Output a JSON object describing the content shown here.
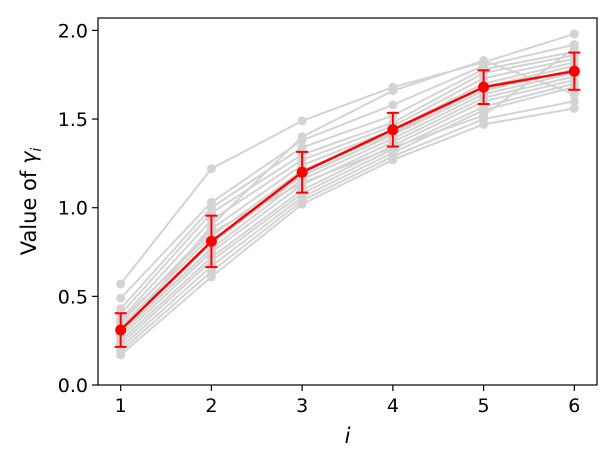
{
  "chart_data": {
    "type": "line",
    "xlabel": "i",
    "ylabel": {
      "prefix": "Value of ",
      "symbol": "γ",
      "subscript": "i"
    },
    "x": [
      1,
      2,
      3,
      4,
      5,
      6
    ],
    "xlim": [
      0.75,
      6.25
    ],
    "ylim": [
      0.0,
      2.07
    ],
    "xticks": [
      1,
      2,
      3,
      4,
      5,
      6
    ],
    "yticks": [
      0.0,
      0.5,
      1.0,
      1.5,
      2.0
    ],
    "ytick_labels": [
      "0.0",
      "0.5",
      "1.0",
      "1.5",
      "2.0"
    ],
    "grid": false,
    "background_series_color": "#d3d3d3",
    "mean_series_color": "#ff0000",
    "background_series": [
      [
        0.57,
        1.22,
        1.49,
        1.68,
        1.82,
        1.98
      ],
      [
        0.49,
        1.03,
        1.38,
        1.58,
        1.8,
        1.92
      ],
      [
        0.43,
        1.0,
        1.34,
        1.52,
        1.78,
        1.88
      ],
      [
        0.4,
        0.97,
        1.3,
        1.48,
        1.76,
        1.86
      ],
      [
        0.37,
        0.93,
        1.27,
        1.46,
        1.73,
        1.84
      ],
      [
        0.35,
        0.88,
        1.24,
        1.44,
        1.7,
        1.82
      ],
      [
        0.33,
        0.84,
        1.21,
        1.42,
        1.68,
        1.8
      ],
      [
        0.31,
        0.8,
        1.18,
        1.41,
        1.66,
        1.78
      ],
      [
        0.29,
        0.77,
        1.16,
        1.39,
        1.64,
        1.76
      ],
      [
        0.27,
        0.75,
        1.13,
        1.37,
        1.62,
        1.74
      ],
      [
        0.25,
        0.72,
        1.1,
        1.35,
        1.6,
        1.72
      ],
      [
        0.23,
        0.7,
        1.08,
        1.33,
        1.57,
        1.7
      ],
      [
        0.21,
        0.67,
        1.06,
        1.31,
        1.55,
        1.68
      ],
      [
        0.19,
        0.64,
        1.04,
        1.29,
        1.5,
        1.6
      ],
      [
        0.17,
        0.61,
        1.02,
        1.27,
        1.47,
        1.56
      ],
      [
        0.28,
        0.9,
        1.4,
        1.66,
        1.83,
        1.64
      ],
      [
        0.36,
        0.86,
        1.14,
        1.34,
        1.52,
        1.9
      ]
    ],
    "mean_series": {
      "y": [
        0.31,
        0.81,
        1.2,
        1.44,
        1.68,
        1.77
      ],
      "err": [
        0.095,
        0.145,
        0.115,
        0.095,
        0.095,
        0.105
      ]
    }
  }
}
